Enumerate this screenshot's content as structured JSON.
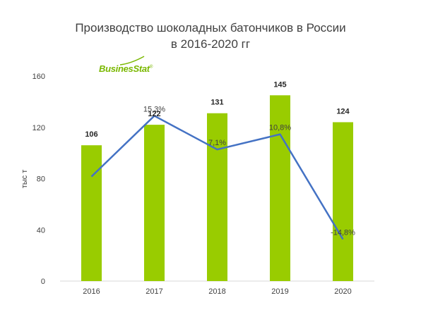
{
  "title_line1": "Производство шоколадных батончиков в России",
  "title_line2": "в 2016-2020 гг",
  "logo_text": "BusinesStat",
  "logo_mark": "®",
  "colors": {
    "bar": "#99cc00",
    "line": "#4472c4",
    "axis": "#d9d9d9",
    "logo": "#7ab800"
  },
  "chart_data": {
    "type": "bar",
    "title": "Производство шоколадных батончиков в России в 2016-2020 гг",
    "ylabel": "тыс т",
    "ylim": [
      0,
      160
    ],
    "yticks": [
      0,
      40,
      80,
      120,
      160
    ],
    "categories": [
      "2016",
      "2017",
      "2018",
      "2019",
      "2020"
    ],
    "series": [
      {
        "values": [
          106,
          122,
          131,
          145,
          124
        ],
        "labels": [
          "106",
          "122",
          "131",
          "145",
          "124"
        ]
      }
    ],
    "growth_line": {
      "values": [
        null,
        15.3,
        7.1,
        10.8,
        -14.8
      ],
      "labels": [
        "",
        "15,3%",
        "7,1%",
        "10,8%",
        "-14,8%"
      ]
    }
  }
}
